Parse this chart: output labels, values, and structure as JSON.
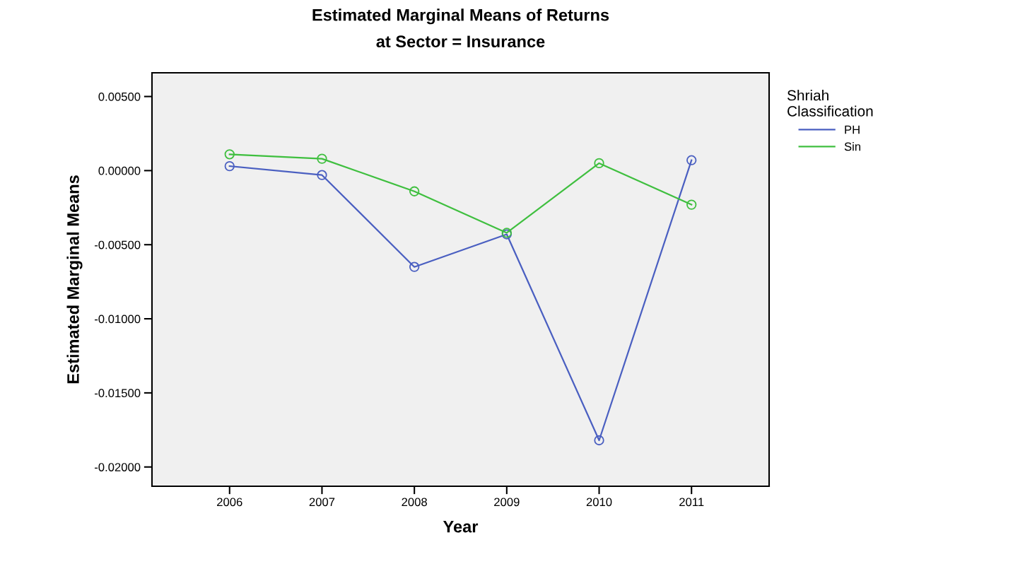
{
  "chart_data": {
    "type": "line",
    "title": "Estimated Marginal Means of Returns\nat Sector = Insurance",
    "xlabel": "Year",
    "ylabel": "Estimated Marginal Means",
    "legend_title": "Shriah\nClassification",
    "categories": [
      "2006",
      "2007",
      "2008",
      "2009",
      "2010",
      "2011"
    ],
    "series": [
      {
        "name": "PH",
        "color": "#4a5fc1",
        "values": [
          0.0003,
          -0.0003,
          -0.0065,
          -0.0043,
          -0.0182,
          0.0007
        ]
      },
      {
        "name": "Sin",
        "color": "#3fbf3f",
        "values": [
          0.0011,
          0.0008,
          -0.0014,
          -0.0042,
          0.0005,
          -0.0023
        ]
      }
    ],
    "ylim": [
      -0.0213,
      0.0066
    ],
    "marker": "circle",
    "line_style": "solid",
    "grid": false,
    "legend": "top right outside",
    "yticks": [
      {
        "value": 0.005,
        "label": "0.00500"
      },
      {
        "value": 0,
        "label": "0.00000"
      },
      {
        "value": -0.005,
        "label": "-0.00500"
      },
      {
        "value": -0.01,
        "label": "-0.01000"
      },
      {
        "value": -0.015,
        "label": "-0.01500"
      },
      {
        "value": -0.02,
        "label": "-0.02000"
      }
    ]
  }
}
